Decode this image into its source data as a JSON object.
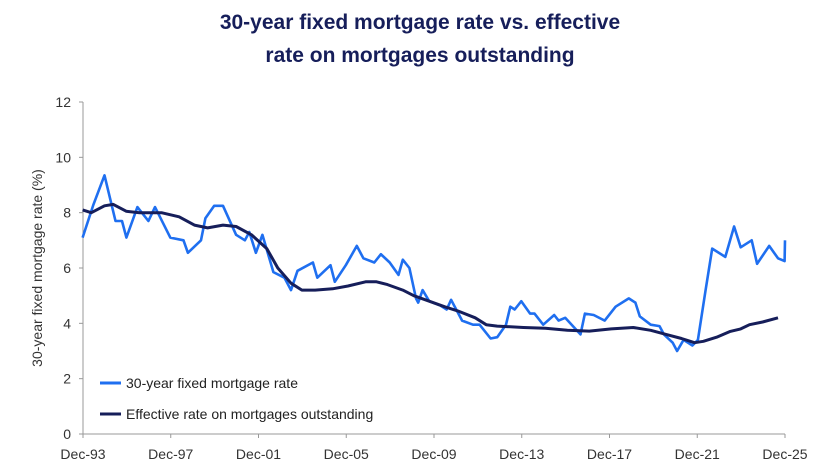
{
  "chart_data": {
    "type": "line",
    "title": "30-year fixed mortgage rate vs. effective rate on mortgages outstanding",
    "title_lines": [
      "30-year fixed mortgage rate vs. effective",
      "rate on mortgages outstanding"
    ],
    "xlabel": "",
    "ylabel": "30-year fixed mortgage rate (%)",
    "xlim": [
      1993.92,
      2025.92
    ],
    "ylim": [
      0,
      12
    ],
    "yticks": [
      "0",
      "2",
      "4",
      "6",
      "8",
      "10",
      "12"
    ],
    "xticks": [
      "Dec-93",
      "Dec-97",
      "Dec-01",
      "Dec-05",
      "Dec-09",
      "Dec-13",
      "Dec-17",
      "Dec-21",
      "Dec-25"
    ],
    "grid": false,
    "legend_position": "bottom-left",
    "series": [
      {
        "name": "30-year fixed mortgage rate",
        "color": "#1f6ff0",
        "points": [
          [
            1993.9,
            7.1
          ],
          [
            1994.4,
            8.3
          ],
          [
            1994.9,
            9.35
          ],
          [
            1995.4,
            7.7
          ],
          [
            1995.7,
            7.7
          ],
          [
            1995.9,
            7.1
          ],
          [
            1996.4,
            8.2
          ],
          [
            1996.9,
            7.7
          ],
          [
            1997.2,
            8.2
          ],
          [
            1997.9,
            7.1
          ],
          [
            1998.5,
            7.0
          ],
          [
            1998.7,
            6.55
          ],
          [
            1999.3,
            7.0
          ],
          [
            1999.5,
            7.8
          ],
          [
            1999.9,
            8.25
          ],
          [
            2000.3,
            8.25
          ],
          [
            2000.9,
            7.2
          ],
          [
            2001.3,
            7.0
          ],
          [
            2001.5,
            7.3
          ],
          [
            2001.8,
            6.55
          ],
          [
            2002.1,
            7.2
          ],
          [
            2002.6,
            5.85
          ],
          [
            2003.1,
            5.65
          ],
          [
            2003.4,
            5.2
          ],
          [
            2003.7,
            5.9
          ],
          [
            2004.4,
            6.2
          ],
          [
            2004.6,
            5.65
          ],
          [
            2005.2,
            6.1
          ],
          [
            2005.4,
            5.5
          ],
          [
            2005.9,
            6.1
          ],
          [
            2006.4,
            6.8
          ],
          [
            2006.7,
            6.35
          ],
          [
            2007.2,
            6.2
          ],
          [
            2007.5,
            6.5
          ],
          [
            2007.9,
            6.2
          ],
          [
            2008.3,
            5.75
          ],
          [
            2008.5,
            6.3
          ],
          [
            2008.8,
            6.0
          ],
          [
            2009.1,
            4.9
          ],
          [
            2009.2,
            4.75
          ],
          [
            2009.4,
            5.2
          ],
          [
            2009.7,
            4.8
          ],
          [
            2010.2,
            4.65
          ],
          [
            2010.5,
            4.5
          ],
          [
            2010.7,
            4.85
          ],
          [
            2011.2,
            4.1
          ],
          [
            2011.7,
            3.95
          ],
          [
            2012.0,
            3.95
          ],
          [
            2012.5,
            3.45
          ],
          [
            2012.8,
            3.5
          ],
          [
            2013.2,
            3.95
          ],
          [
            2013.4,
            4.6
          ],
          [
            2013.6,
            4.5
          ],
          [
            2013.9,
            4.8
          ],
          [
            2014.3,
            4.35
          ],
          [
            2014.5,
            4.35
          ],
          [
            2014.9,
            3.95
          ],
          [
            2015.4,
            4.3
          ],
          [
            2015.6,
            4.1
          ],
          [
            2015.9,
            4.2
          ],
          [
            2016.6,
            3.6
          ],
          [
            2016.8,
            4.35
          ],
          [
            2017.2,
            4.3
          ],
          [
            2017.7,
            4.1
          ],
          [
            2018.2,
            4.6
          ],
          [
            2018.8,
            4.9
          ],
          [
            2019.1,
            4.75
          ],
          [
            2019.3,
            4.25
          ],
          [
            2019.8,
            3.95
          ],
          [
            2020.2,
            3.9
          ],
          [
            2020.4,
            3.6
          ],
          [
            2020.8,
            3.3
          ],
          [
            2021.0,
            3.0
          ],
          [
            2021.3,
            3.4
          ],
          [
            2021.7,
            3.2
          ],
          [
            2021.95,
            3.4
          ],
          [
            2022.3,
            5.2
          ],
          [
            2022.6,
            6.7
          ],
          [
            2023.2,
            6.4
          ],
          [
            2023.6,
            7.5
          ],
          [
            2023.9,
            6.75
          ],
          [
            2024.4,
            7.0
          ],
          [
            2024.65,
            6.15
          ],
          [
            2025.2,
            6.8
          ],
          [
            2025.6,
            6.35
          ],
          [
            2025.9,
            6.25
          ],
          [
            2025.92,
            7.0
          ]
        ]
      },
      {
        "name": "Effective rate on mortgages outstanding",
        "color": "#161e5a",
        "points": [
          [
            1993.9,
            8.1
          ],
          [
            1994.3,
            8.0
          ],
          [
            1994.9,
            8.25
          ],
          [
            1995.3,
            8.3
          ],
          [
            1995.9,
            8.05
          ],
          [
            1996.5,
            8.0
          ],
          [
            1997.5,
            8.0
          ],
          [
            1998.3,
            7.85
          ],
          [
            1999.0,
            7.55
          ],
          [
            1999.6,
            7.45
          ],
          [
            2000.3,
            7.55
          ],
          [
            2000.9,
            7.5
          ],
          [
            2001.6,
            7.2
          ],
          [
            2002.3,
            6.7
          ],
          [
            2002.8,
            6.0
          ],
          [
            2003.4,
            5.45
          ],
          [
            2003.9,
            5.2
          ],
          [
            2004.5,
            5.2
          ],
          [
            2005.3,
            5.25
          ],
          [
            2006.0,
            5.35
          ],
          [
            2006.8,
            5.5
          ],
          [
            2007.3,
            5.5
          ],
          [
            2007.8,
            5.4
          ],
          [
            2008.5,
            5.2
          ],
          [
            2009.0,
            5.0
          ],
          [
            2009.7,
            4.8
          ],
          [
            2010.4,
            4.6
          ],
          [
            2011.0,
            4.45
          ],
          [
            2011.8,
            4.2
          ],
          [
            2012.3,
            3.95
          ],
          [
            2012.8,
            3.9
          ],
          [
            2014.0,
            3.85
          ],
          [
            2015.0,
            3.82
          ],
          [
            2016.0,
            3.75
          ],
          [
            2017.0,
            3.72
          ],
          [
            2018.0,
            3.8
          ],
          [
            2019.0,
            3.85
          ],
          [
            2019.8,
            3.75
          ],
          [
            2020.5,
            3.6
          ],
          [
            2021.2,
            3.45
          ],
          [
            2021.8,
            3.3
          ],
          [
            2022.2,
            3.35
          ],
          [
            2022.8,
            3.5
          ],
          [
            2023.4,
            3.7
          ],
          [
            2023.9,
            3.8
          ],
          [
            2024.3,
            3.95
          ],
          [
            2024.9,
            4.05
          ],
          [
            2025.6,
            4.2
          ]
        ]
      }
    ]
  }
}
